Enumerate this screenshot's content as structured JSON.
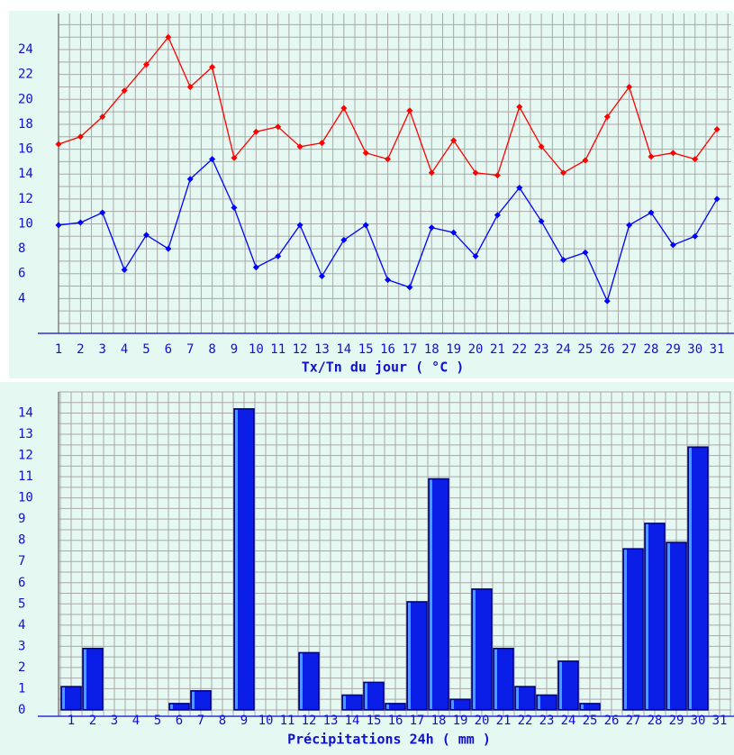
{
  "chart_data": [
    {
      "type": "line",
      "title": "Tx/Tn du jour ( °C )",
      "categories": [
        "1",
        "2",
        "3",
        "4",
        "5",
        "6",
        "7",
        "8",
        "9",
        "10",
        "11",
        "12",
        "13",
        "14",
        "15",
        "16",
        "17",
        "18",
        "19",
        "20",
        "21",
        "22",
        "23",
        "24",
        "25",
        "26",
        "27",
        "28",
        "29",
        "30",
        "31"
      ],
      "series": [
        {
          "color": "#ff0000",
          "values": [
            16.4,
            17.0,
            18.6,
            20.7,
            22.8,
            25.0,
            21.0,
            22.6,
            15.3,
            17.4,
            17.8,
            16.2,
            16.5,
            19.3,
            15.7,
            15.2,
            19.1,
            14.1,
            16.7,
            14.1,
            13.9,
            19.4,
            16.2,
            14.1,
            15.1,
            18.6,
            21.0,
            15.4,
            15.7,
            15.2,
            17.6
          ]
        },
        {
          "color": "#0000ff",
          "values": [
            9.9,
            10.1,
            10.9,
            6.3,
            9.1,
            8.0,
            13.6,
            15.2,
            11.3,
            6.5,
            7.4,
            9.9,
            5.8,
            8.7,
            9.9,
            5.5,
            4.9,
            9.7,
            9.3,
            7.4,
            10.7,
            12.9,
            10.2,
            7.1,
            7.7,
            3.8,
            9.9,
            10.9,
            8.3,
            9.0,
            12.0
          ]
        }
      ],
      "ylim": [
        1.2,
        26.9
      ],
      "yticks": [
        4,
        6,
        8,
        10,
        12,
        14,
        16,
        18,
        20,
        22,
        24
      ],
      "grid": true
    },
    {
      "type": "bar",
      "title": "Précipitations 24h ( mm )",
      "categories": [
        "1",
        "2",
        "3",
        "4",
        "5",
        "6",
        "7",
        "8",
        "9",
        "10",
        "11",
        "12",
        "13",
        "14",
        "15",
        "16",
        "17",
        "18",
        "19",
        "20",
        "21",
        "22",
        "23",
        "24",
        "25",
        "26",
        "27",
        "28",
        "29",
        "30",
        "31"
      ],
      "values": [
        1.1,
        2.9,
        0,
        0,
        0,
        0.3,
        0.9,
        0,
        14.2,
        0,
        0,
        2.7,
        0,
        0.7,
        1.3,
        0.3,
        5.1,
        10.9,
        0.5,
        5.7,
        2.9,
        1.1,
        0.7,
        2.3,
        0.3,
        0,
        7.6,
        8.8,
        7.9,
        12.4,
        0
      ],
      "color": "#0a1ee8",
      "ylim": [
        -0.3,
        15.0
      ],
      "yticks": [
        0,
        1,
        2,
        3,
        4,
        5,
        6,
        7,
        8,
        9,
        10,
        11,
        12,
        13,
        14
      ],
      "grid": true
    }
  ]
}
